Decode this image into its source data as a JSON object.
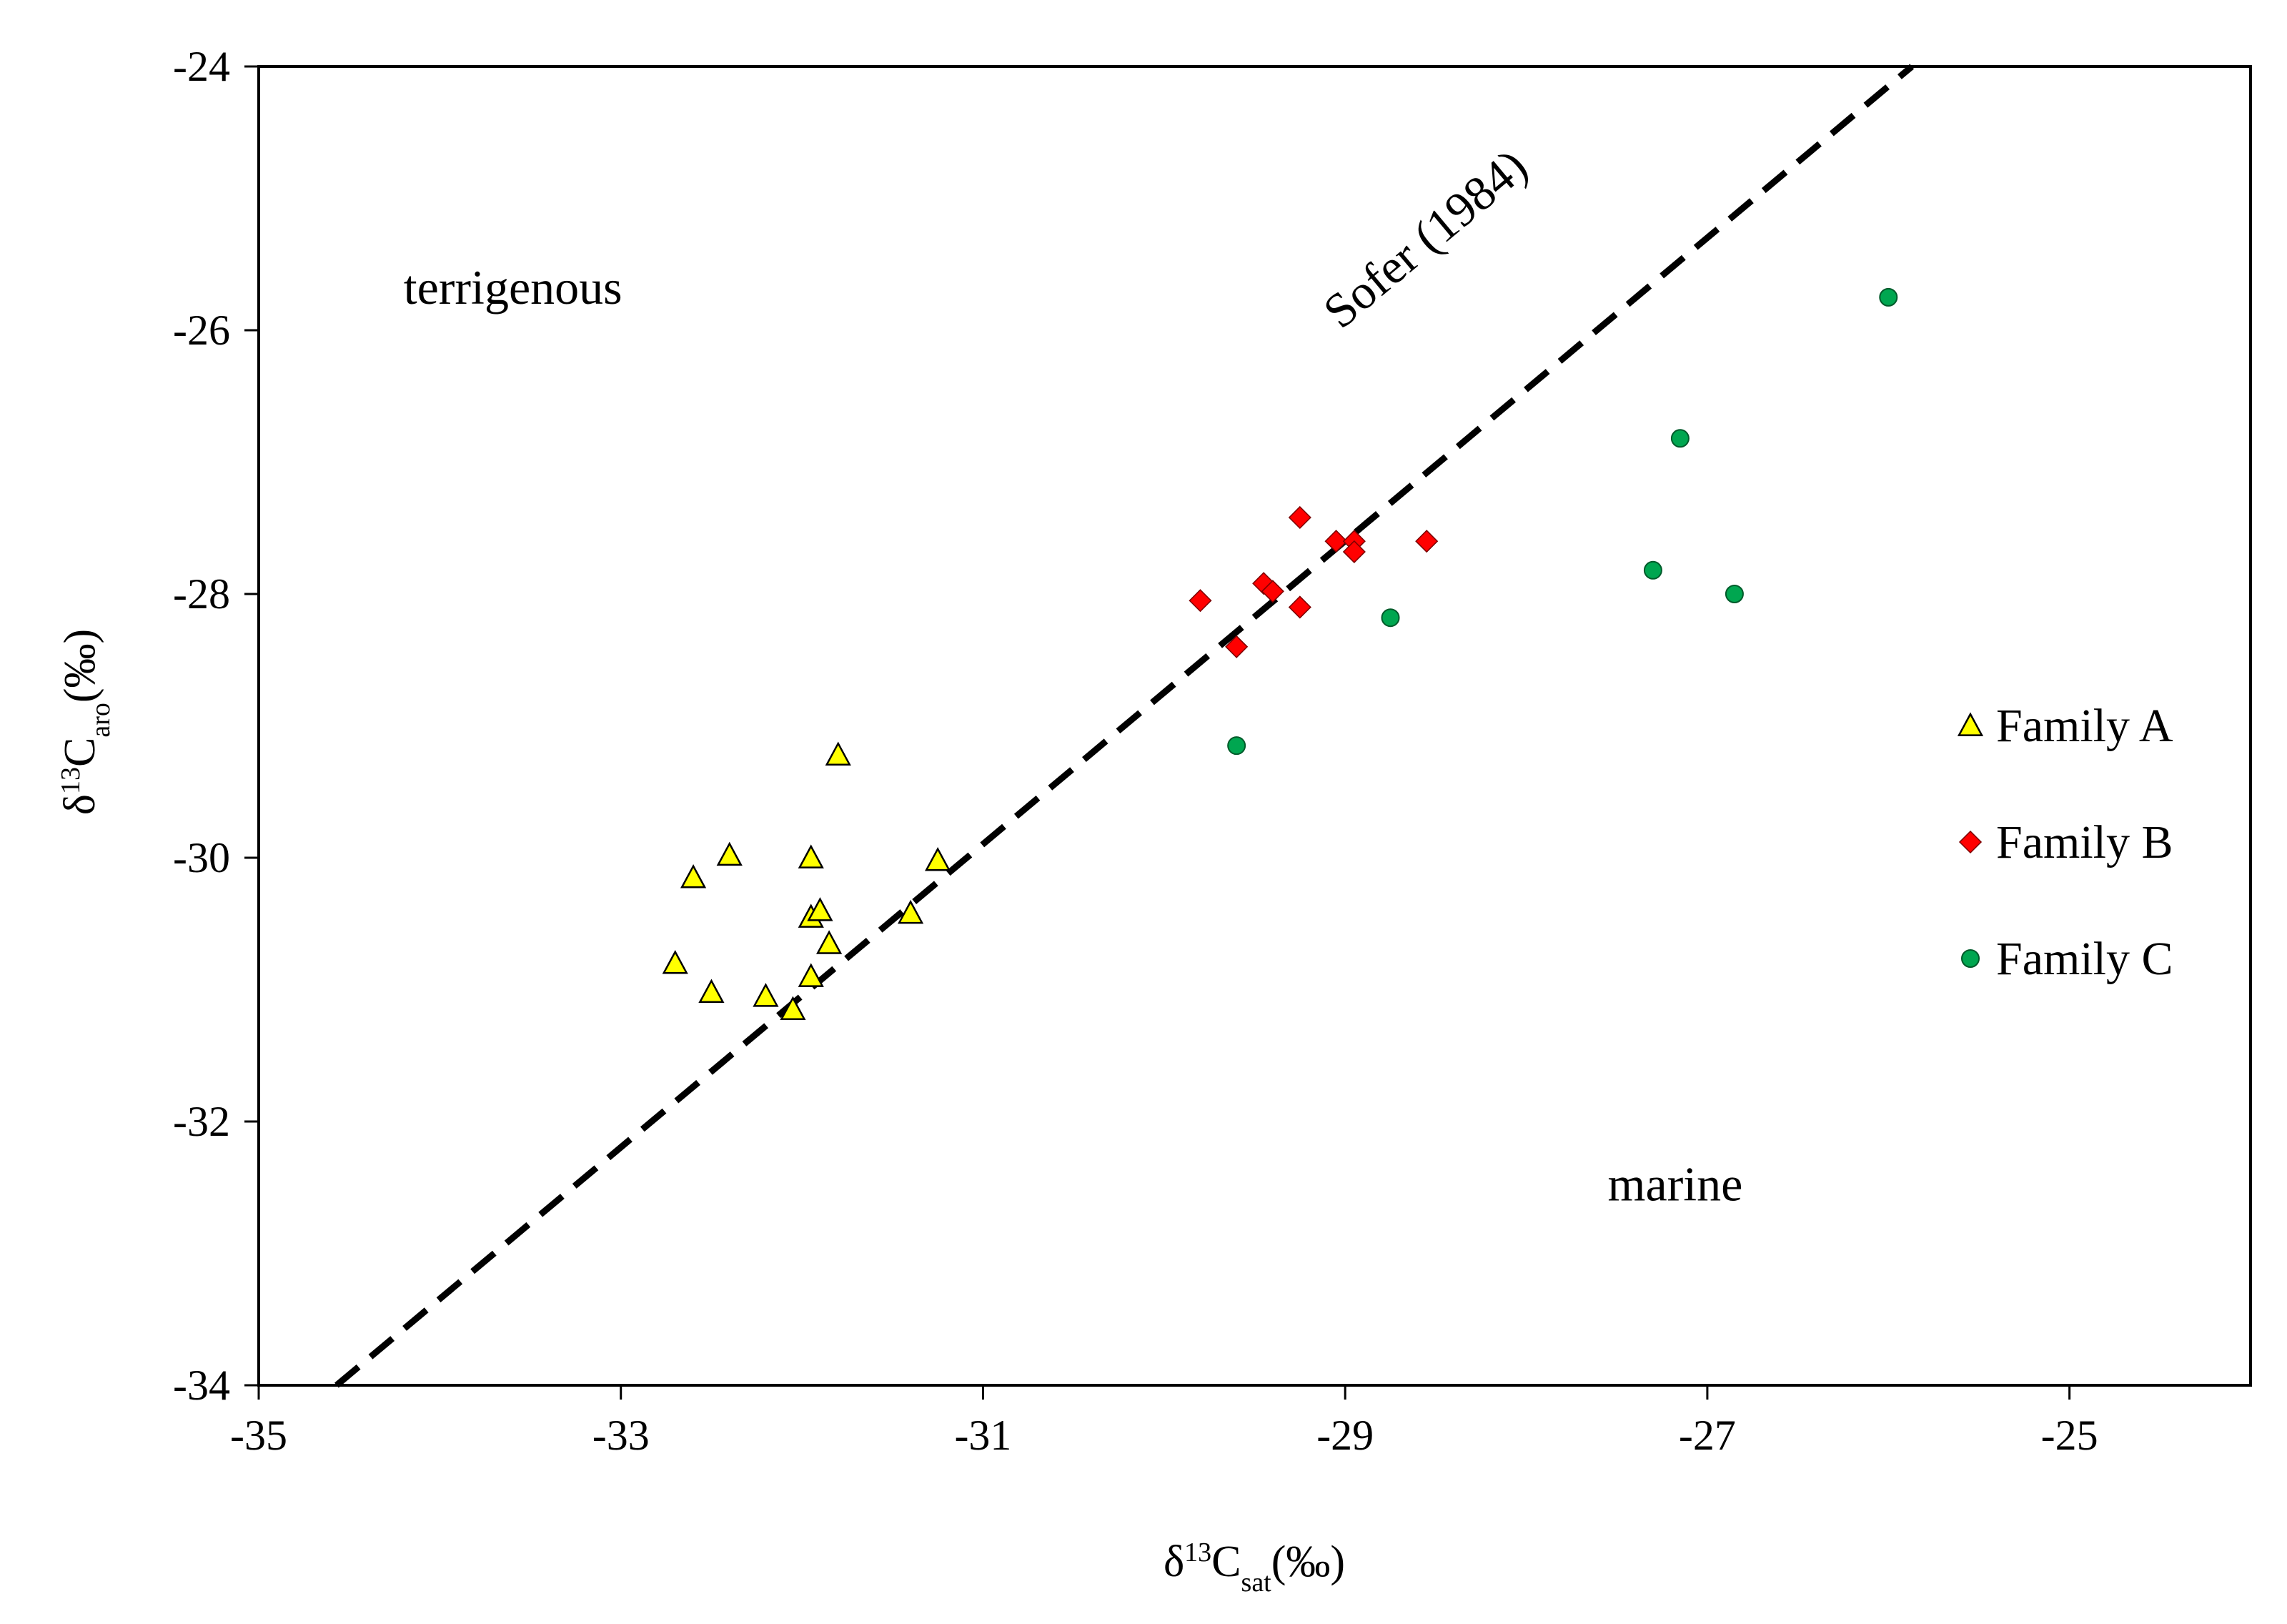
{
  "chart_data": {
    "type": "scatter",
    "xlabel": {
      "base": "δ",
      "sup": "13",
      "main": "C",
      "sub": "sat",
      "unit": "(‰)"
    },
    "ylabel": {
      "base": "δ",
      "sup": "13",
      "main": "C",
      "sub": "aro",
      "unit": "(‰)"
    },
    "xlim": [
      -35,
      -24
    ],
    "ylim": [
      -34,
      -24
    ],
    "xticks": [
      -35,
      -33,
      -31,
      -29,
      -27,
      -25
    ],
    "xtick_labels": [
      "-35",
      "-33",
      "-31",
      "-29",
      "-27",
      "-25"
    ],
    "yticks": [
      -34,
      -32,
      -30,
      -28,
      -26,
      -24
    ],
    "ytick_labels": [
      "-34",
      "-32",
      "-30",
      "-28",
      "-26",
      "-24"
    ],
    "grid": false,
    "legend_position": "right",
    "series": [
      {
        "name": "Family A",
        "marker": "triangle",
        "color": "#ffff00",
        "x": [
          -32.7,
          -32.6,
          -32.5,
          -32.4,
          -32.2,
          -32.05,
          -31.95,
          -31.95,
          -31.95,
          -31.9,
          -31.85,
          -31.8,
          -31.4,
          -31.25
        ],
        "y": [
          -30.8,
          -30.15,
          -31.02,
          -29.98,
          -31.05,
          -31.15,
          -30.0,
          -30.45,
          -30.9,
          -30.4,
          -30.65,
          -29.22,
          -30.42,
          -30.02
        ]
      },
      {
        "name": "Family B",
        "marker": "diamond",
        "color": "#ff0000",
        "x": [
          -29.8,
          -29.6,
          -29.45,
          -29.4,
          -29.25,
          -29.25,
          -29.05,
          -28.95,
          -28.95,
          -28.55
        ],
        "y": [
          -28.05,
          -28.4,
          -27.92,
          -27.98,
          -27.42,
          -28.1,
          -27.6,
          -27.6,
          -27.68,
          -27.6
        ]
      },
      {
        "name": "Family C",
        "marker": "circle",
        "color": "#00a650",
        "x": [
          -29.6,
          -28.75,
          -27.3,
          -27.15,
          -26.85,
          -26.0
        ],
        "y": [
          -29.15,
          -28.18,
          -27.82,
          -26.82,
          -28.0,
          -25.75
        ]
      }
    ],
    "reference_line": {
      "label": "Sofer (1984)",
      "x": [
        -34.57,
        -25.87
      ],
      "y": [
        -34.0,
        -24.0
      ],
      "style": "dashed"
    },
    "annotations": [
      {
        "text": "terrigenous",
        "x": -34.2,
        "y": -25.8
      },
      {
        "text": "marine",
        "x": -27.55,
        "y": -32.6
      }
    ]
  }
}
